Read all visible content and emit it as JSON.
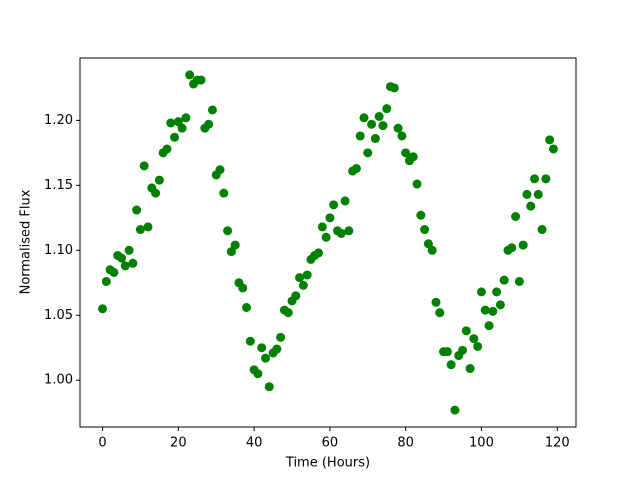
{
  "chart_data": {
    "type": "scatter",
    "x_label": "Time (Hours)",
    "y_label": "Normalised Flux",
    "color": "#008000",
    "x": [
      0,
      1,
      2,
      3,
      4,
      5,
      6,
      7,
      8,
      9,
      10,
      11,
      12,
      13,
      14,
      15,
      16,
      17,
      18,
      19,
      20,
      21,
      22,
      23,
      24,
      25,
      26,
      27,
      28,
      29,
      30,
      31,
      32,
      33,
      34,
      35,
      36,
      37,
      38,
      39,
      40,
      41,
      42,
      43,
      44,
      45,
      46,
      47,
      48,
      49,
      50,
      51,
      52,
      53,
      54,
      55,
      56,
      57,
      58,
      59,
      60,
      61,
      62,
      63,
      64,
      65,
      66,
      67,
      68,
      69,
      70,
      71,
      72,
      73,
      74,
      75,
      76,
      77,
      78,
      79,
      80,
      81,
      82,
      83,
      84,
      85,
      86,
      87,
      88,
      89,
      90,
      91,
      92,
      93,
      94,
      95,
      96,
      97,
      98,
      99,
      100,
      101,
      102,
      103,
      104,
      105,
      106,
      107,
      108,
      109,
      110,
      111,
      112,
      113,
      114,
      115,
      116,
      117,
      118,
      119
    ],
    "values": [
      1.055,
      1.076,
      1.085,
      1.083,
      1.096,
      1.094,
      1.088,
      1.1,
      1.09,
      1.131,
      1.116,
      1.165,
      1.118,
      1.148,
      1.144,
      1.154,
      1.175,
      1.178,
      1.198,
      1.187,
      1.199,
      1.194,
      1.202,
      1.235,
      1.228,
      1.231,
      1.231,
      1.194,
      1.197,
      1.208,
      1.158,
      1.162,
      1.144,
      1.115,
      1.099,
      1.104,
      1.075,
      1.071,
      1.056,
      1.03,
      1.008,
      1.005,
      1.025,
      1.017,
      0.995,
      1.021,
      1.024,
      1.033,
      1.054,
      1.052,
      1.061,
      1.065,
      1.079,
      1.073,
      1.081,
      1.093,
      1.096,
      1.098,
      1.118,
      1.11,
      1.125,
      1.135,
      1.115,
      1.113,
      1.138,
      1.115,
      1.161,
      1.163,
      1.188,
      1.202,
      1.175,
      1.197,
      1.186,
      1.203,
      1.196,
      1.209,
      1.226,
      1.225,
      1.194,
      1.188,
      1.175,
      1.169,
      1.172,
      1.151,
      1.127,
      1.116,
      1.105,
      1.1,
      1.06,
      1.052,
      1.022,
      1.022,
      1.012,
      0.977,
      1.019,
      1.023,
      1.038,
      1.009,
      1.032,
      1.026,
      1.068,
      1.054,
      1.042,
      1.053,
      1.068,
      1.058,
      1.077,
      1.1,
      1.102,
      1.126,
      1.076,
      1.104,
      1.143,
      1.134,
      1.155,
      1.143,
      1.116,
      1.155,
      1.185,
      1.178
    ],
    "xlim": [
      -5.95,
      124.95
    ],
    "ylim": [
      0.964,
      1.248
    ],
    "xticks": [
      0,
      20,
      40,
      60,
      80,
      100,
      120
    ],
    "yticks": [
      {
        "value": 1.0,
        "label": "1.00"
      },
      {
        "value": 1.05,
        "label": "1.05"
      },
      {
        "value": 1.1,
        "label": "1.10"
      },
      {
        "value": 1.15,
        "label": "1.15"
      },
      {
        "value": 1.2,
        "label": "1.20"
      }
    ],
    "grid": false
  }
}
